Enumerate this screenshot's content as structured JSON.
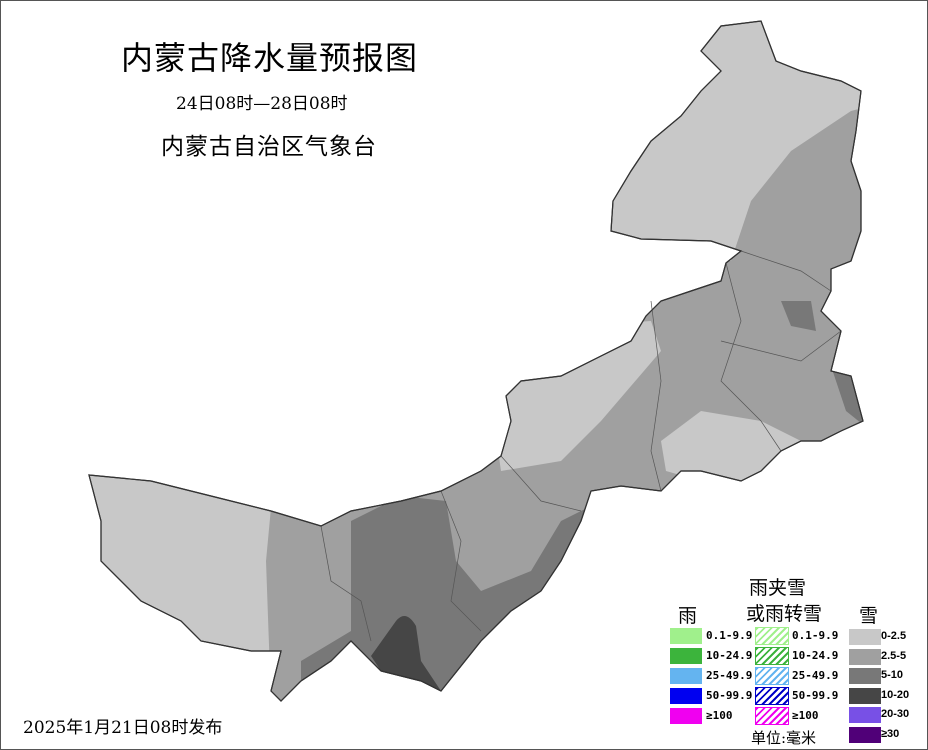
{
  "title": "内蒙古降水量预报图",
  "period": "24日08时—28日08时",
  "issuer": "内蒙古自治区气象台",
  "issue_time": "2025年1月21日08时发布",
  "legend": {
    "rain": {
      "heading": "雨",
      "items": [
        {
          "label": "0.1-9.9",
          "color": "#a0f08c"
        },
        {
          "label": "10-24.9",
          "color": "#3cb43c"
        },
        {
          "label": "25-49.9",
          "color": "#64b4f0"
        },
        {
          "label": "50-99.9",
          "color": "#0000f0"
        },
        {
          "label": "≥100",
          "color": "#f000f0"
        }
      ]
    },
    "mixed": {
      "heading_line1": "雨夹雪",
      "heading_line2": "或雨转雪",
      "items": [
        {
          "label": "0.1-9.9",
          "color": "#a0f08c"
        },
        {
          "label": "10-24.9",
          "color": "#3cb43c"
        },
        {
          "label": "25-49.9",
          "color": "#64b4f0"
        },
        {
          "label": "50-99.9",
          "color": "#0000c8"
        },
        {
          "label": "≥100",
          "color": "#f000f0"
        }
      ]
    },
    "snow": {
      "heading": "雪",
      "items": [
        {
          "label": "0-2.5",
          "color": "#c8c8c8"
        },
        {
          "label": "2.5-5",
          "color": "#a0a0a0"
        },
        {
          "label": "5-10",
          "color": "#787878"
        },
        {
          "label": "10-20",
          "color": "#464646"
        },
        {
          "label": "20-30",
          "color": "#7850e6"
        },
        {
          "label": "≥30",
          "color": "#500078"
        }
      ]
    },
    "unit": "单位:毫米"
  }
}
